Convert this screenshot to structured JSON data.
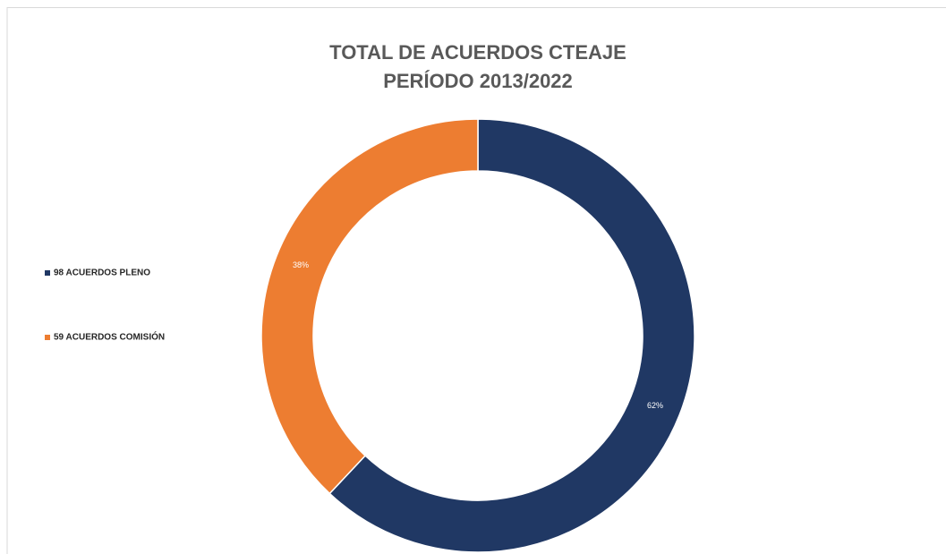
{
  "chart_data": {
    "type": "donut",
    "title": [
      "TOTAL DE ACUERDOS CTEAJE",
      "PERÍODO 2013/2022"
    ],
    "categories": [
      "98 ACUERDOS PLENO",
      "59 ACUERDOS COMISIÓN"
    ],
    "values": [
      62,
      38
    ],
    "value_labels": [
      "62%",
      "38%"
    ],
    "colors": [
      "#203864",
      "#ed7d31"
    ],
    "legend": "left"
  }
}
